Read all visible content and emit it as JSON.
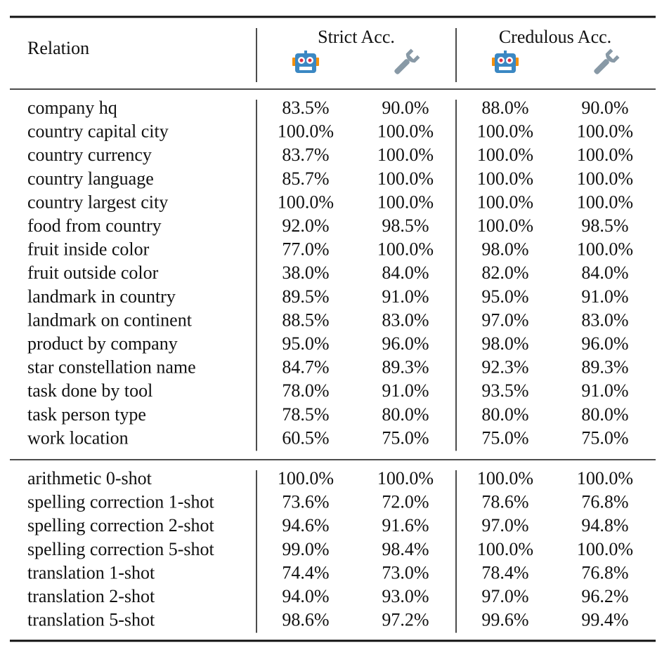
{
  "table": {
    "header": {
      "relation": "Relation",
      "groups": [
        "Strict Acc.",
        "Credulous Acc."
      ]
    },
    "sections": [
      [
        [
          "company hq",
          "83.5%",
          "90.0%",
          "88.0%",
          "90.0%"
        ],
        [
          "country capital city",
          "100.0%",
          "100.0%",
          "100.0%",
          "100.0%"
        ],
        [
          "country currency",
          "83.7%",
          "100.0%",
          "100.0%",
          "100.0%"
        ],
        [
          "country language",
          "85.7%",
          "100.0%",
          "100.0%",
          "100.0%"
        ],
        [
          "country largest city",
          "100.0%",
          "100.0%",
          "100.0%",
          "100.0%"
        ],
        [
          "food from country",
          "92.0%",
          "98.5%",
          "100.0%",
          "98.5%"
        ],
        [
          "fruit inside color",
          "77.0%",
          "100.0%",
          "98.0%",
          "100.0%"
        ],
        [
          "fruit outside color",
          "38.0%",
          "84.0%",
          "82.0%",
          "84.0%"
        ],
        [
          "landmark in country",
          "89.5%",
          "91.0%",
          "95.0%",
          "91.0%"
        ],
        [
          "landmark on continent",
          "88.5%",
          "83.0%",
          "97.0%",
          "83.0%"
        ],
        [
          "product by company",
          "95.0%",
          "96.0%",
          "98.0%",
          "96.0%"
        ],
        [
          "star constellation name",
          "84.7%",
          "89.3%",
          "92.3%",
          "89.3%"
        ],
        [
          "task done by tool",
          "78.0%",
          "91.0%",
          "93.5%",
          "91.0%"
        ],
        [
          "task person type",
          "78.5%",
          "80.0%",
          "80.0%",
          "80.0%"
        ],
        [
          "work location",
          "60.5%",
          "75.0%",
          "75.0%",
          "75.0%"
        ]
      ],
      [
        [
          "arithmetic 0-shot",
          "100.0%",
          "100.0%",
          "100.0%",
          "100.0%"
        ],
        [
          "spelling correction 1-shot",
          "73.6%",
          "72.0%",
          "78.6%",
          "76.8%"
        ],
        [
          "spelling correction 2-shot",
          "94.6%",
          "91.6%",
          "97.0%",
          "94.8%"
        ],
        [
          "spelling correction 5-shot",
          "99.0%",
          "98.4%",
          "100.0%",
          "100.0%"
        ],
        [
          "translation 1-shot",
          "74.4%",
          "73.0%",
          "78.4%",
          "76.8%"
        ],
        [
          "translation 2-shot",
          "94.0%",
          "93.0%",
          "97.0%",
          "96.2%"
        ],
        [
          "translation 5-shot",
          "98.6%",
          "97.2%",
          "99.6%",
          "99.4%"
        ]
      ]
    ]
  }
}
